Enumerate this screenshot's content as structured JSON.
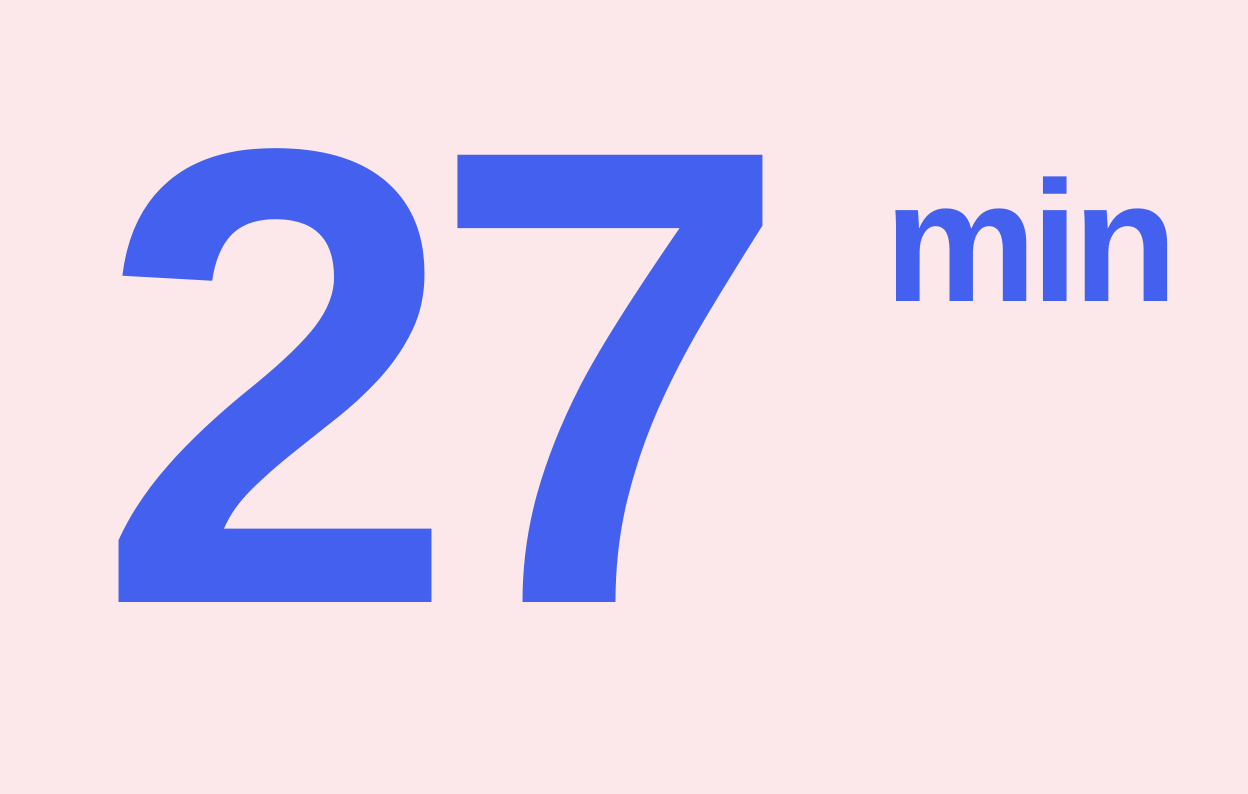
{
  "stat": {
    "value": "27",
    "unit": "min"
  },
  "colors": {
    "background": "#FCE8EA",
    "accent": "#4361EE"
  }
}
